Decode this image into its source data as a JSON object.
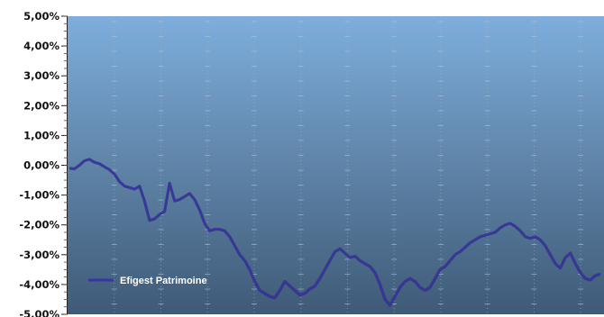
{
  "chart_data": {
    "type": "line",
    "title": "",
    "xlabel": "",
    "ylabel": "",
    "ylim": [
      -5.0,
      5.0
    ],
    "y_ticks": [
      5,
      4,
      3,
      2,
      1,
      0,
      -1,
      -2,
      -3,
      -4,
      -5
    ],
    "y_tick_labels": [
      "5,00%",
      "4,00%",
      "3,00%",
      "2,00%",
      "1,00%",
      "0,00%",
      "-1,00%",
      "-2,00%",
      "-3,00%",
      "-4,00%",
      "-5,00%"
    ],
    "grid": true,
    "legend_position": "bottom-left",
    "series": [
      {
        "name": "Efigest Patrimoine",
        "color": "#3a33a8",
        "values": [
          -0.1,
          -0.12,
          0.0,
          0.15,
          0.2,
          0.1,
          0.05,
          -0.05,
          -0.15,
          -0.3,
          -0.55,
          -0.7,
          -0.75,
          -0.8,
          -0.7,
          -1.2,
          -1.85,
          -1.8,
          -1.65,
          -1.55,
          -0.6,
          -1.2,
          -1.15,
          -1.05,
          -0.95,
          -1.15,
          -1.5,
          -1.95,
          -2.2,
          -2.15,
          -2.15,
          -2.2,
          -2.4,
          -2.7,
          -3.0,
          -3.2,
          -3.5,
          -3.9,
          -4.2,
          -4.3,
          -4.4,
          -4.45,
          -4.2,
          -3.9,
          -4.05,
          -4.2,
          -4.35,
          -4.3,
          -4.15,
          -4.05,
          -3.8,
          -3.5,
          -3.2,
          -2.9,
          -2.8,
          -2.95,
          -3.1,
          -3.05,
          -3.2,
          -3.3,
          -3.4,
          -3.6,
          -4.0,
          -4.5,
          -4.7,
          -4.4,
          -4.1,
          -3.9,
          -3.8,
          -3.9,
          -4.1,
          -4.2,
          -4.1,
          -3.8,
          -3.5,
          -3.4,
          -3.2,
          -3.0,
          -2.9,
          -2.75,
          -2.6,
          -2.5,
          -2.4,
          -2.35,
          -2.3,
          -2.25,
          -2.1,
          -2.0,
          -1.95,
          -2.05,
          -2.2,
          -2.4,
          -2.45,
          -2.4,
          -2.5,
          -2.7,
          -3.0,
          -3.3,
          -3.45,
          -3.1,
          -2.95,
          -3.3,
          -3.6,
          -3.8,
          -3.85,
          -3.7,
          -3.65
        ]
      }
    ]
  }
}
